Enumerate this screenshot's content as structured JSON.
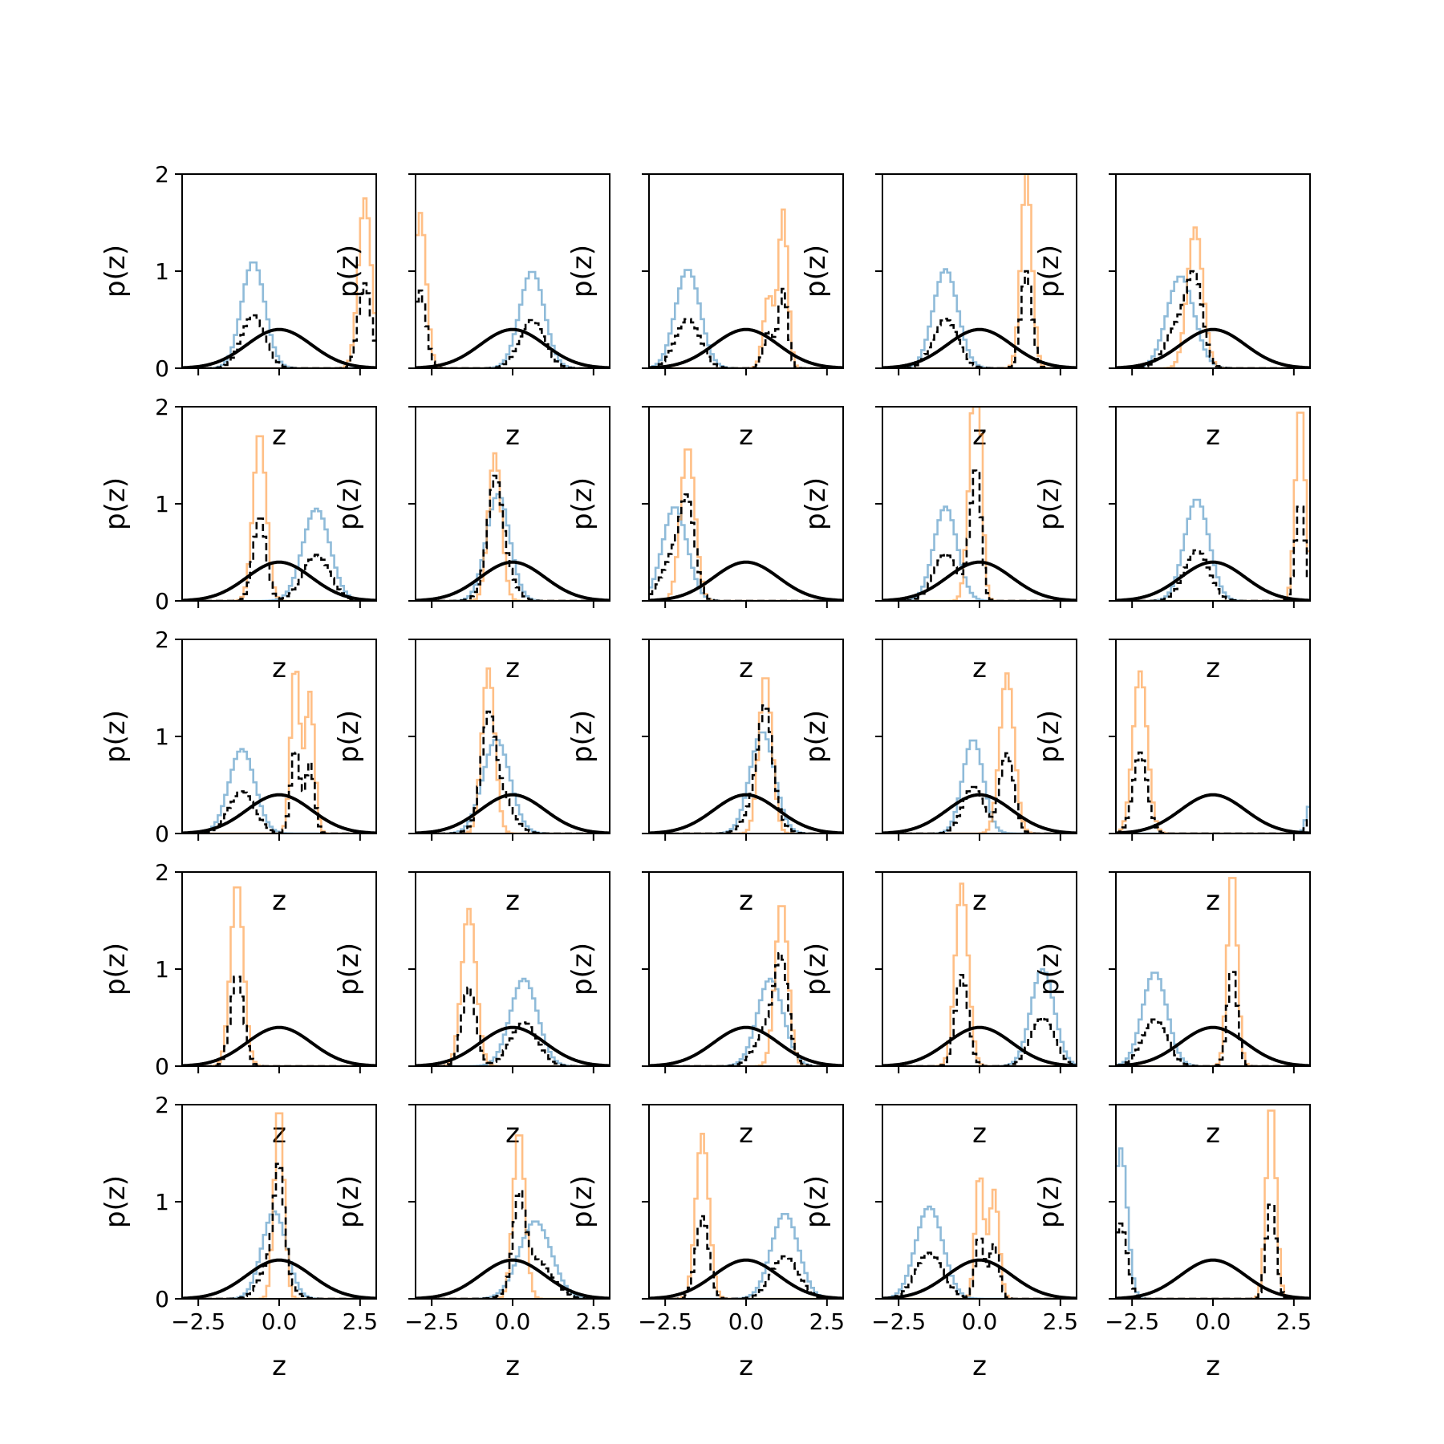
{
  "chart_data": {
    "type": "step-histogram-grid",
    "rows": 5,
    "cols": 5,
    "xlabel": "z",
    "ylabel": "p(z)",
    "xlim": [
      -3,
      3
    ],
    "ylim": [
      0,
      2
    ],
    "xticks": [
      -2.5,
      0.0,
      2.5
    ],
    "xtick_labels": [
      "−2.5",
      "0.0",
      "2.5"
    ],
    "yticks": [
      0,
      1,
      2
    ],
    "ytick_labels": [
      "0",
      "1",
      "2"
    ],
    "grid": false,
    "legend": "none",
    "colors": {
      "blue": "#1f77b4",
      "orange": "#ff7f0e",
      "dashed": "#000000",
      "prior": "#000000"
    },
    "prior": {
      "name": "standard normal N(0,1)",
      "mean": 0,
      "std": 1
    },
    "panels": [
      {
        "blue": [
          {
            "mu": -0.8,
            "sd": 0.36,
            "h": 1.1
          }
        ],
        "orange": [
          {
            "mu": 2.65,
            "sd": 0.2,
            "h": 1.75
          }
        ]
      },
      {
        "blue": [
          {
            "mu": 0.6,
            "sd": 0.38,
            "h": 1.0
          }
        ],
        "orange": [
          {
            "mu": -2.85,
            "sd": 0.18,
            "h": 1.6
          }
        ]
      },
      {
        "blue": [
          {
            "mu": -1.8,
            "sd": 0.38,
            "h": 1.02
          }
        ],
        "orange": [
          {
            "mu": 0.7,
            "sd": 0.16,
            "h": 0.75
          },
          {
            "mu": 1.15,
            "sd": 0.14,
            "h": 1.62
          }
        ]
      },
      {
        "blue": [
          {
            "mu": -1.05,
            "sd": 0.38,
            "h": 1.02
          }
        ],
        "orange": [
          {
            "mu": 1.45,
            "sd": 0.17,
            "h": 2.0
          }
        ]
      },
      {
        "blue": [
          {
            "mu": -1.0,
            "sd": 0.42,
            "h": 0.95
          }
        ],
        "orange": [
          {
            "mu": -0.55,
            "sd": 0.24,
            "h": 1.45
          }
        ]
      },
      {
        "blue": [
          {
            "mu": 1.15,
            "sd": 0.42,
            "h": 0.95
          }
        ],
        "orange": [
          {
            "mu": -0.6,
            "sd": 0.2,
            "h": 1.75
          }
        ]
      },
      {
        "blue": [
          {
            "mu": -0.45,
            "sd": 0.36,
            "h": 1.1
          }
        ],
        "orange": [
          {
            "mu": -0.55,
            "sd": 0.2,
            "h": 1.52
          }
        ]
      },
      {
        "blue": [
          {
            "mu": -2.2,
            "sd": 0.38,
            "h": 0.97
          }
        ],
        "orange": [
          {
            "mu": -1.8,
            "sd": 0.22,
            "h": 1.6
          }
        ]
      },
      {
        "blue": [
          {
            "mu": -1.05,
            "sd": 0.36,
            "h": 0.97
          }
        ],
        "orange": [
          {
            "mu": -0.2,
            "sd": 0.17,
            "h": 1.5
          },
          {
            "mu": -0.05,
            "sd": 0.13,
            "h": 1.62
          }
        ]
      },
      {
        "blue": [
          {
            "mu": -0.5,
            "sd": 0.38,
            "h": 1.05
          }
        ],
        "orange": [
          {
            "mu": 2.7,
            "sd": 0.15,
            "h": 2.05
          }
        ]
      },
      {
        "blue": [
          {
            "mu": -1.15,
            "sd": 0.4,
            "h": 0.87
          }
        ],
        "orange": [
          {
            "mu": 0.5,
            "sd": 0.14,
            "h": 1.75
          },
          {
            "mu": 0.95,
            "sd": 0.14,
            "h": 1.45
          }
        ]
      },
      {
        "blue": [
          {
            "mu": -0.5,
            "sd": 0.42,
            "h": 0.97
          }
        ],
        "orange": [
          {
            "mu": -0.75,
            "sd": 0.2,
            "h": 1.7
          }
        ]
      },
      {
        "blue": [
          {
            "mu": 0.5,
            "sd": 0.38,
            "h": 1.05
          }
        ],
        "orange": [
          {
            "mu": 0.6,
            "sd": 0.2,
            "h": 1.65
          }
        ]
      },
      {
        "blue": [
          {
            "mu": -0.2,
            "sd": 0.32,
            "h": 0.97
          }
        ],
        "orange": [
          {
            "mu": 0.85,
            "sd": 0.22,
            "h": 1.65
          }
        ]
      },
      {
        "blue": [
          {
            "mu": 3.0,
            "sd": 0.12,
            "h": 0.3
          }
        ],
        "orange": [
          {
            "mu": -2.25,
            "sd": 0.22,
            "h": 1.67
          }
        ]
      },
      {
        "blue": [],
        "orange": [
          {
            "mu": -1.3,
            "sd": 0.2,
            "h": 1.9
          }
        ]
      },
      {
        "blue": [
          {
            "mu": 0.35,
            "sd": 0.42,
            "h": 0.9
          }
        ],
        "orange": [
          {
            "mu": -1.35,
            "sd": 0.22,
            "h": 1.62
          }
        ]
      },
      {
        "blue": [
          {
            "mu": 0.75,
            "sd": 0.4,
            "h": 0.9
          }
        ],
        "orange": [
          {
            "mu": 1.1,
            "sd": 0.2,
            "h": 1.7
          }
        ]
      },
      {
        "blue": [
          {
            "mu": 1.95,
            "sd": 0.36,
            "h": 1.0
          }
        ],
        "orange": [
          {
            "mu": -0.55,
            "sd": 0.2,
            "h": 1.88
          }
        ]
      },
      {
        "blue": [
          {
            "mu": -1.8,
            "sd": 0.38,
            "h": 0.97
          }
        ],
        "orange": [
          {
            "mu": 0.6,
            "sd": 0.15,
            "h": 2.05
          }
        ]
      },
      {
        "blue": [
          {
            "mu": -0.15,
            "sd": 0.38,
            "h": 0.9
          }
        ],
        "orange": [
          {
            "mu": 0.0,
            "sd": 0.15,
            "h": 2.02
          }
        ]
      },
      {
        "blue": [
          {
            "mu": 0.7,
            "sd": 0.5,
            "h": 0.8
          }
        ],
        "orange": [
          {
            "mu": 0.2,
            "sd": 0.18,
            "h": 1.75
          }
        ]
      },
      {
        "blue": [
          {
            "mu": 1.2,
            "sd": 0.42,
            "h": 0.88
          }
        ],
        "orange": [
          {
            "mu": -1.35,
            "sd": 0.2,
            "h": 1.7
          }
        ]
      },
      {
        "blue": [
          {
            "mu": -1.55,
            "sd": 0.42,
            "h": 0.95
          }
        ],
        "orange": [
          {
            "mu": 0.0,
            "sd": 0.13,
            "h": 1.3
          },
          {
            "mu": 0.45,
            "sd": 0.15,
            "h": 1.12
          }
        ]
      },
      {
        "blue": [
          {
            "mu": -2.85,
            "sd": 0.2,
            "h": 1.55
          }
        ],
        "orange": [
          {
            "mu": 1.8,
            "sd": 0.15,
            "h": 2.05
          }
        ]
      }
    ]
  }
}
